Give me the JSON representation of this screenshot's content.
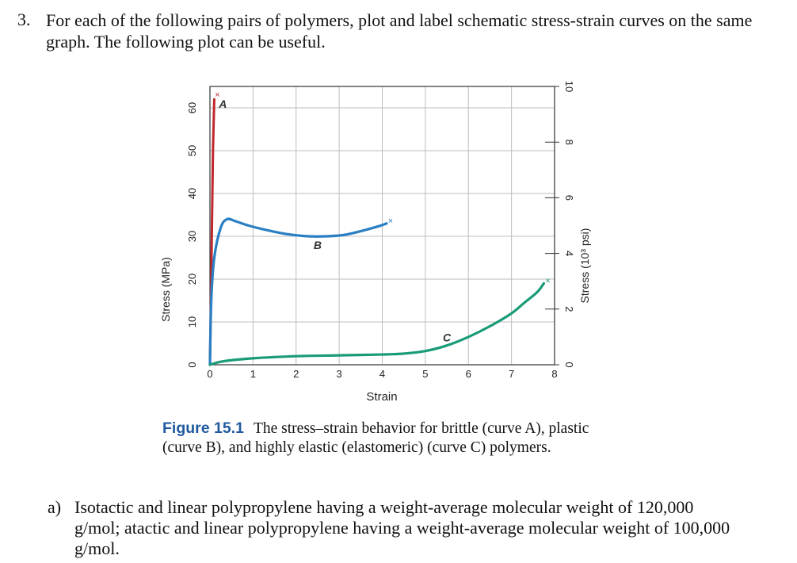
{
  "question": {
    "number": "3.",
    "text": "For each of the following pairs of polymers, plot and label schematic stress-strain curves on the same graph. The following plot can be useful."
  },
  "figure": {
    "label": "Figure 15.1",
    "caption": "The stress–strain behavior for brittle (curve A), plastic (curve B), and highly elastic (elastomeric) (curve C) polymers."
  },
  "chart_data": {
    "type": "line",
    "title": "",
    "xlabel": "Strain",
    "ylabel": "Stress (MPa)",
    "y2label": "Stress (10³ psi)",
    "xlim": [
      0,
      8
    ],
    "ylim": [
      0,
      65
    ],
    "y2lim": [
      0,
      10
    ],
    "x_ticks": [
      0,
      1,
      2,
      3,
      4,
      5,
      6,
      7,
      8
    ],
    "y_ticks": [
      0,
      10,
      20,
      30,
      40,
      50,
      60
    ],
    "y2_ticks": [
      0,
      2,
      4,
      6,
      8,
      10
    ],
    "grid": true,
    "series": [
      {
        "name": "A",
        "color": "#c0282d",
        "x": [
          0,
          0.03,
          0.07,
          0.1
        ],
        "y": [
          0,
          20,
          50,
          62
        ]
      },
      {
        "name": "B",
        "color": "#2a7fc4",
        "x": [
          0,
          0.03,
          0.1,
          0.25,
          0.4,
          0.6,
          0.9,
          1.3,
          1.8,
          2.3,
          2.7,
          3.1,
          3.5,
          3.9,
          4.1
        ],
        "y": [
          0,
          15,
          25,
          32,
          34,
          33.5,
          32.5,
          31.5,
          30.5,
          30,
          30,
          30.3,
          31.2,
          32.3,
          33
        ]
      },
      {
        "name": "C",
        "color": "#1a9b78",
        "x": [
          0,
          0.3,
          1,
          2,
          3,
          4,
          4.5,
          5,
          5.5,
          6,
          6.5,
          7,
          7.3,
          7.6,
          7.75
        ],
        "y": [
          0,
          0.8,
          1.5,
          2,
          2.2,
          2.4,
          2.6,
          3.2,
          4.5,
          6.5,
          9,
          12,
          14.5,
          17,
          19
        ]
      }
    ],
    "curve_labels": [
      "A",
      "B",
      "C"
    ]
  },
  "part_a": {
    "letter": "a)",
    "text": "Isotactic and linear polypropylene having a weight-average molecular weight of 120,000 g/mol; atactic and linear polypropylene having a weight-average molecular weight of 100,000 g/mol."
  }
}
